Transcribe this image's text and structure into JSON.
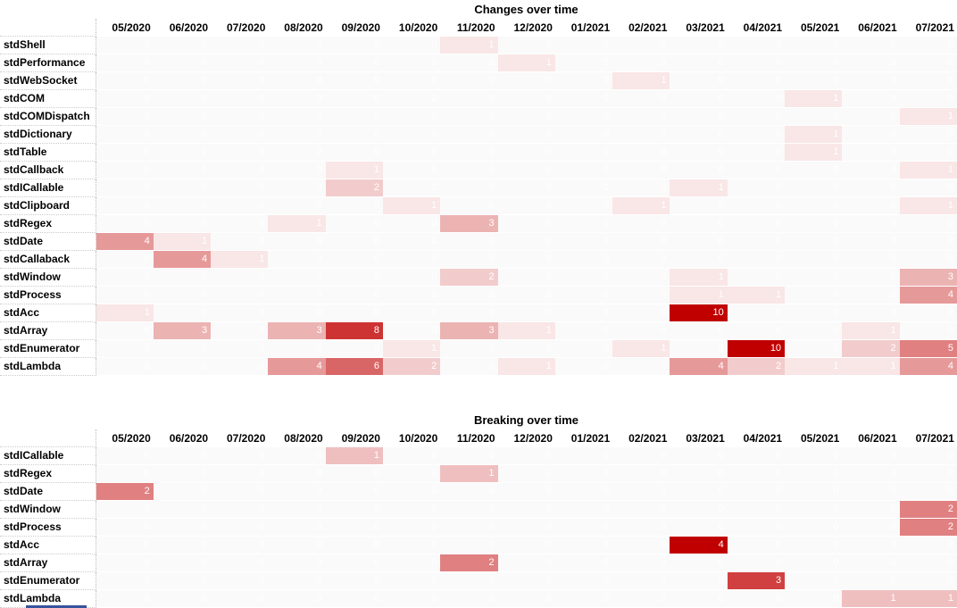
{
  "chart_data": [
    {
      "type": "heatmap",
      "title": "Changes over time",
      "x": [
        "05/2020",
        "06/2020",
        "07/2020",
        "08/2020",
        "09/2020",
        "10/2020",
        "11/2020",
        "12/2020",
        "01/2021",
        "02/2021",
        "03/2021",
        "04/2021",
        "05/2021",
        "06/2021",
        "07/2021"
      ],
      "y": [
        "stdShell",
        "stdPerformance",
        "stdWebSocket",
        "stdCOM",
        "stdCOMDispatch",
        "stdDictionary",
        "stdTable",
        "stdCallback",
        "stdICallable",
        "stdClipboard",
        "stdRegex",
        "stdDate",
        "stdCallaback",
        "stdWindow",
        "stdProcess",
        "stdAcc",
        "stdArray",
        "stdEnumerator",
        "stdLambda"
      ],
      "values": [
        [
          0,
          0,
          0,
          0,
          0,
          0,
          1,
          0,
          0,
          0,
          0,
          0,
          0,
          0,
          0
        ],
        [
          0,
          0,
          0,
          0,
          0,
          0,
          0,
          1,
          0,
          0,
          0,
          0,
          0,
          0,
          0
        ],
        [
          0,
          0,
          0,
          0,
          0,
          0,
          0,
          0,
          0,
          1,
          0,
          0,
          0,
          0,
          0
        ],
        [
          0,
          0,
          0,
          0,
          0,
          0,
          0,
          0,
          0,
          0,
          0,
          0,
          1,
          0,
          0
        ],
        [
          0,
          0,
          0,
          0,
          0,
          0,
          0,
          0,
          0,
          0,
          0,
          0,
          0,
          0,
          1
        ],
        [
          0,
          0,
          0,
          0,
          0,
          0,
          0,
          0,
          0,
          0,
          0,
          0,
          1,
          0,
          0
        ],
        [
          0,
          0,
          0,
          0,
          0,
          0,
          0,
          0,
          0,
          0,
          0,
          0,
          1,
          0,
          0
        ],
        [
          0,
          0,
          0,
          0,
          1,
          0,
          0,
          0,
          0,
          0,
          0,
          0,
          0,
          0,
          1
        ],
        [
          0,
          0,
          0,
          0,
          2,
          0,
          0,
          0,
          0,
          0,
          1,
          0,
          0,
          0,
          0
        ],
        [
          0,
          0,
          0,
          0,
          0,
          1,
          0,
          0,
          0,
          1,
          0,
          0,
          0,
          0,
          1
        ],
        [
          0,
          0,
          0,
          1,
          0,
          0,
          3,
          0,
          0,
          0,
          0,
          0,
          0,
          0,
          0
        ],
        [
          4,
          1,
          0,
          0,
          0,
          0,
          0,
          0,
          0,
          0,
          0,
          0,
          0,
          0,
          0
        ],
        [
          0,
          4,
          1,
          0,
          0,
          0,
          0,
          0,
          0,
          0,
          0,
          0,
          0,
          0,
          0
        ],
        [
          0,
          0,
          0,
          0,
          0,
          0,
          2,
          0,
          0,
          0,
          1,
          0,
          0,
          0,
          3
        ],
        [
          0,
          0,
          0,
          0,
          0,
          0,
          0,
          0,
          0,
          0,
          1,
          1,
          0,
          0,
          4
        ],
        [
          1,
          0,
          0,
          0,
          0,
          0,
          0,
          0,
          0,
          0,
          10,
          0,
          0,
          0,
          0
        ],
        [
          0,
          3,
          0,
          3,
          8,
          0,
          3,
          1,
          0,
          0,
          0,
          0,
          0,
          1,
          0
        ],
        [
          0,
          0,
          0,
          0,
          0,
          1,
          0,
          0,
          0,
          1,
          0,
          10,
          0,
          2,
          5
        ],
        [
          0,
          0,
          0,
          4,
          6,
          2,
          0,
          1,
          0,
          0,
          4,
          2,
          1,
          1,
          4
        ]
      ],
      "color_scale": {
        "min": 0,
        "max": 10,
        "min_color": "#FFFFFF",
        "max_color": "#C00000"
      },
      "legend": "none",
      "grid": "off"
    },
    {
      "type": "heatmap",
      "title": "Breaking over time",
      "x": [
        "05/2020",
        "06/2020",
        "07/2020",
        "08/2020",
        "09/2020",
        "10/2020",
        "11/2020",
        "12/2020",
        "01/2021",
        "02/2021",
        "03/2021",
        "04/2021",
        "05/2021",
        "06/2021",
        "07/2021"
      ],
      "y": [
        "stdICallable",
        "stdRegex",
        "stdDate",
        "stdWindow",
        "stdProcess",
        "stdAcc",
        "stdArray",
        "stdEnumerator",
        "stdLambda"
      ],
      "values": [
        [
          0,
          0,
          0,
          0,
          1,
          0,
          0,
          0,
          0,
          0,
          0,
          0,
          0,
          0,
          0
        ],
        [
          0,
          0,
          0,
          0,
          0,
          0,
          1,
          0,
          0,
          0,
          0,
          0,
          0,
          0,
          0
        ],
        [
          2,
          0,
          0,
          0,
          0,
          0,
          0,
          0,
          0,
          0,
          0,
          0,
          0,
          0,
          0
        ],
        [
          0,
          0,
          0,
          0,
          0,
          0,
          0,
          0,
          0,
          0,
          0,
          0,
          0,
          0,
          2
        ],
        [
          0,
          0,
          0,
          0,
          0,
          0,
          0,
          0,
          0,
          0,
          0,
          0,
          0,
          0,
          2
        ],
        [
          0,
          0,
          0,
          0,
          0,
          0,
          0,
          0,
          0,
          0,
          4,
          0,
          0,
          0,
          0
        ],
        [
          0,
          0,
          0,
          0,
          0,
          0,
          2,
          0,
          0,
          0,
          0,
          0,
          0,
          0,
          0
        ],
        [
          0,
          0,
          0,
          0,
          0,
          0,
          0,
          0,
          0,
          0,
          0,
          3,
          0,
          0,
          0
        ],
        [
          0,
          0,
          0,
          0,
          0,
          0,
          0,
          0,
          0,
          0,
          0,
          0,
          0,
          1,
          1
        ]
      ],
      "color_scale": {
        "min": 0,
        "max": 4,
        "min_color": "#FFFFFF",
        "max_color": "#C00000"
      },
      "legend": "none",
      "grid": "off"
    }
  ],
  "colors": {
    "heat_min": "#FFFFFF",
    "heat_max": "#C00000",
    "zero_cell_bg": "#FBFAFB",
    "value_text": "#FFFFFF",
    "label_text": "#000000",
    "gridline_dotted": "#CCCCCC",
    "clipped_row_bar": "#35549B"
  }
}
